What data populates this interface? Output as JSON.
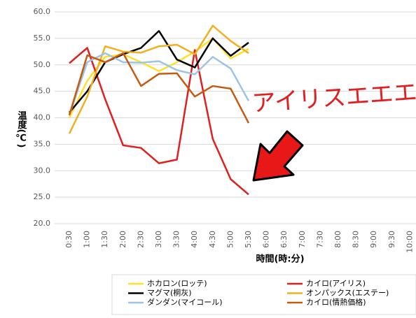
{
  "chart_data": {
    "type": "line",
    "y_label": "温度(℃)",
    "x_label": "時間(時:分)",
    "annotation": "アイリスエエエ!!",
    "categories": [
      "0:30",
      "1:00",
      "1:30",
      "2:00",
      "2:30",
      "3:00",
      "3:30",
      "4:00",
      "4:30",
      "5:00",
      "5:30",
      "6:00",
      "6:30",
      "7:00",
      "7:30",
      "8:00",
      "8:30",
      "9:00",
      "9:30",
      "10:00"
    ],
    "ylim": [
      20,
      60
    ],
    "yticks": [
      {
        "value": 20,
        "label": "20.0"
      },
      {
        "value": 25,
        "label": "25.0"
      },
      {
        "value": 30,
        "label": "30.0"
      },
      {
        "value": 35,
        "label": "35.0"
      },
      {
        "value": 40,
        "label": "40.0"
      },
      {
        "value": 45,
        "label": "45.0"
      },
      {
        "value": 50,
        "label": "50.0"
      },
      {
        "value": 55,
        "label": "55.0"
      },
      {
        "value": 60,
        "label": "60.0"
      }
    ],
    "grid": true,
    "series": [
      {
        "name": "ホカロン(ロッテ)",
        "color": "#ffe02a",
        "values": [
          40,
          47,
          51.5,
          52,
          50.5,
          48.8,
          50.5,
          52.5,
          55,
          51.2,
          53,
          null,
          null,
          null,
          null,
          null,
          null,
          null,
          null,
          null
        ]
      },
      {
        "name": "カイロ(アイリス)",
        "color": "#e02020",
        "values": [
          50.3,
          53.2,
          43.5,
          34.8,
          34.3,
          31.4,
          32.1,
          52.8,
          36,
          28.4,
          25.5,
          null,
          null,
          null,
          null,
          null,
          null,
          null,
          null,
          null
        ]
      },
      {
        "name": "マグマ(桐灰)",
        "color": "#000000",
        "values": [
          41,
          45,
          50.5,
          52,
          53.2,
          56.4,
          51,
          49.5,
          55,
          51.7,
          54.2,
          null,
          null,
          null,
          null,
          null,
          null,
          null,
          null,
          null
        ]
      },
      {
        "name": "オンパックス(エステー)",
        "color": "#f0b022",
        "values": [
          37,
          44,
          53.5,
          52.5,
          52.3,
          53.5,
          53.8,
          52,
          57.4,
          54.5,
          52.2,
          null,
          null,
          null,
          null,
          null,
          null,
          null,
          null,
          null
        ]
      },
      {
        "name": "ダンダン(マイコール)",
        "color": "#9dc3e6",
        "values": [
          40.5,
          50.5,
          52.2,
          50.5,
          50.4,
          50.7,
          49,
          48.2,
          51.5,
          49.3,
          43.2,
          null,
          null,
          null,
          null,
          null,
          null,
          null,
          null,
          null
        ]
      },
      {
        "name": "カイロ(情熱価格)",
        "color": "#c55a11",
        "values": [
          40.5,
          51.8,
          50.5,
          52.2,
          46,
          48.3,
          48.4,
          44,
          46,
          45.5,
          39,
          null,
          null,
          null,
          null,
          null,
          null,
          null,
          null,
          null
        ]
      }
    ]
  }
}
